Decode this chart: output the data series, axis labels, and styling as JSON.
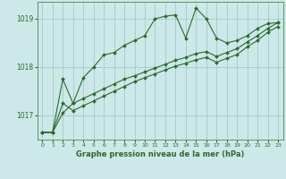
{
  "title": "",
  "xlabel": "Graphe pression niveau de la mer (hPa)",
  "ylabel": "",
  "bg_color": "#cce8e8",
  "grid_color": "#a0cccc",
  "line_color": "#2d6a2d",
  "ylim": [
    1016.5,
    1019.35
  ],
  "xlim": [
    -0.5,
    23.5
  ],
  "yticks": [
    1017,
    1018,
    1019
  ],
  "xticks": [
    0,
    1,
    2,
    3,
    4,
    5,
    6,
    7,
    8,
    9,
    10,
    11,
    12,
    13,
    14,
    15,
    16,
    17,
    18,
    19,
    20,
    21,
    22,
    23
  ],
  "series": [
    {
      "x": [
        0,
        1,
        2,
        3,
        4,
        5,
        6,
        7,
        8,
        9,
        10,
        11,
        12,
        13,
        14,
        15,
        16,
        17,
        18,
        19,
        20,
        21,
        22,
        23
      ],
      "y": [
        1016.65,
        1016.65,
        1017.05,
        1017.25,
        1017.78,
        1018.0,
        1018.25,
        1018.3,
        1018.45,
        1018.55,
        1018.65,
        1019.0,
        1019.05,
        1019.08,
        1018.6,
        1019.22,
        1019.0,
        1018.6,
        1018.5,
        1018.55,
        1018.65,
        1018.8,
        1018.9,
        1018.92
      ]
    },
    {
      "x": [
        0,
        1,
        2,
        3,
        4,
        5,
        6,
        7,
        8,
        9,
        10,
        11,
        12,
        13,
        14,
        15,
        16,
        17,
        18,
        19,
        20,
        21,
        22,
        23
      ],
      "y": [
        1016.65,
        1016.65,
        1017.75,
        1017.25,
        1017.35,
        1017.45,
        1017.55,
        1017.65,
        1017.75,
        1017.82,
        1017.9,
        1017.98,
        1018.06,
        1018.14,
        1018.2,
        1018.28,
        1018.32,
        1018.22,
        1018.3,
        1018.38,
        1018.52,
        1018.65,
        1018.8,
        1018.92
      ]
    },
    {
      "x": [
        0,
        1,
        2,
        3,
        4,
        5,
        6,
        7,
        8,
        9,
        10,
        11,
        12,
        13,
        14,
        15,
        16,
        17,
        18,
        19,
        20,
        21,
        22,
        23
      ],
      "y": [
        1016.65,
        1016.65,
        1017.25,
        1017.1,
        1017.2,
        1017.3,
        1017.4,
        1017.5,
        1017.6,
        1017.7,
        1017.78,
        1017.86,
        1017.94,
        1018.02,
        1018.08,
        1018.15,
        1018.2,
        1018.1,
        1018.18,
        1018.26,
        1018.42,
        1018.55,
        1018.72,
        1018.84
      ]
    }
  ]
}
